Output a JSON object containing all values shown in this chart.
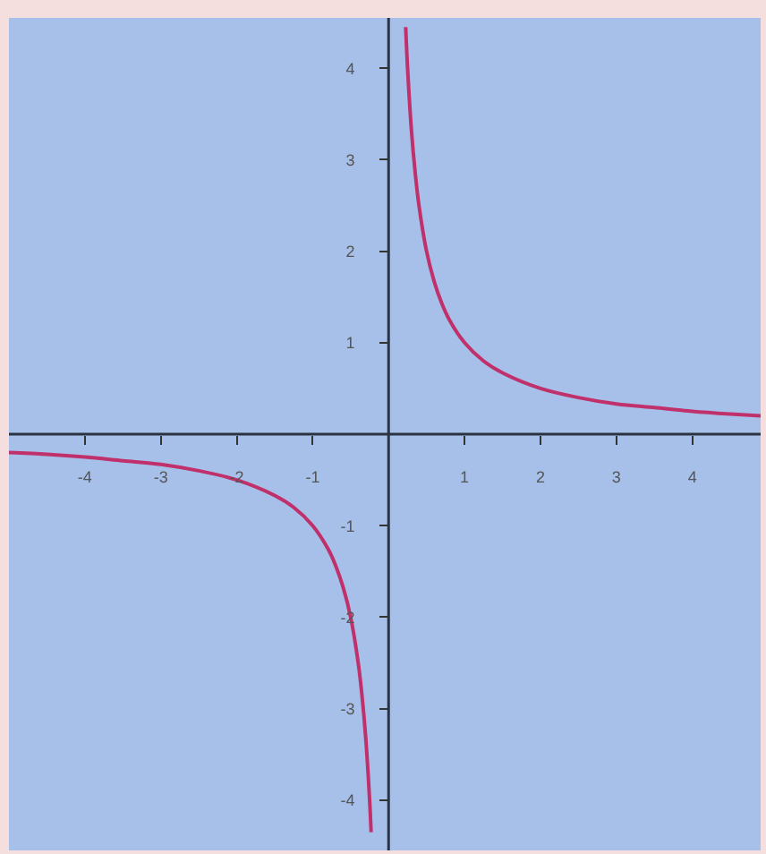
{
  "chart_data": {
    "type": "line",
    "xlim": [
      -5,
      4.9
    ],
    "ylim": [
      -4.55,
      4.55
    ],
    "xticks": [
      -4,
      -3,
      -2,
      -1,
      1,
      2,
      3,
      4
    ],
    "yticks": [
      -4,
      -3,
      -2,
      -1,
      1,
      2,
      3,
      4
    ],
    "grid": false,
    "marker": "none",
    "line_style": "solid",
    "series": [
      {
        "color": "#c0306a",
        "x": [
          0.225,
          0.25,
          0.3,
          0.35,
          0.4,
          0.5,
          0.6,
          0.7,
          0.8,
          1,
          1.25,
          1.5,
          2,
          2.5,
          3,
          3.5,
          4,
          4.5,
          4.9
        ],
        "values": [
          4.45,
          4,
          3.33,
          2.86,
          2.5,
          2,
          1.67,
          1.43,
          1.25,
          1,
          0.8,
          0.67,
          0.5,
          0.4,
          0.33,
          0.29,
          0.25,
          0.22,
          0.2
        ]
      },
      {
        "color": "#c0306a",
        "x": [
          -5,
          -4.5,
          -4,
          -3.5,
          -3,
          -2.5,
          -2,
          -1.5,
          -1.25,
          -1,
          -0.8,
          -0.7,
          -0.6,
          -0.5,
          -0.4,
          -0.35,
          -0.3,
          -0.25,
          -0.23
        ],
        "values": [
          -0.2,
          -0.22,
          -0.25,
          -0.29,
          -0.33,
          -0.4,
          -0.5,
          -0.67,
          -0.8,
          -1,
          -1.25,
          -1.43,
          -1.67,
          -2,
          -2.5,
          -2.86,
          -3.33,
          -4,
          -4.35
        ]
      }
    ]
  }
}
